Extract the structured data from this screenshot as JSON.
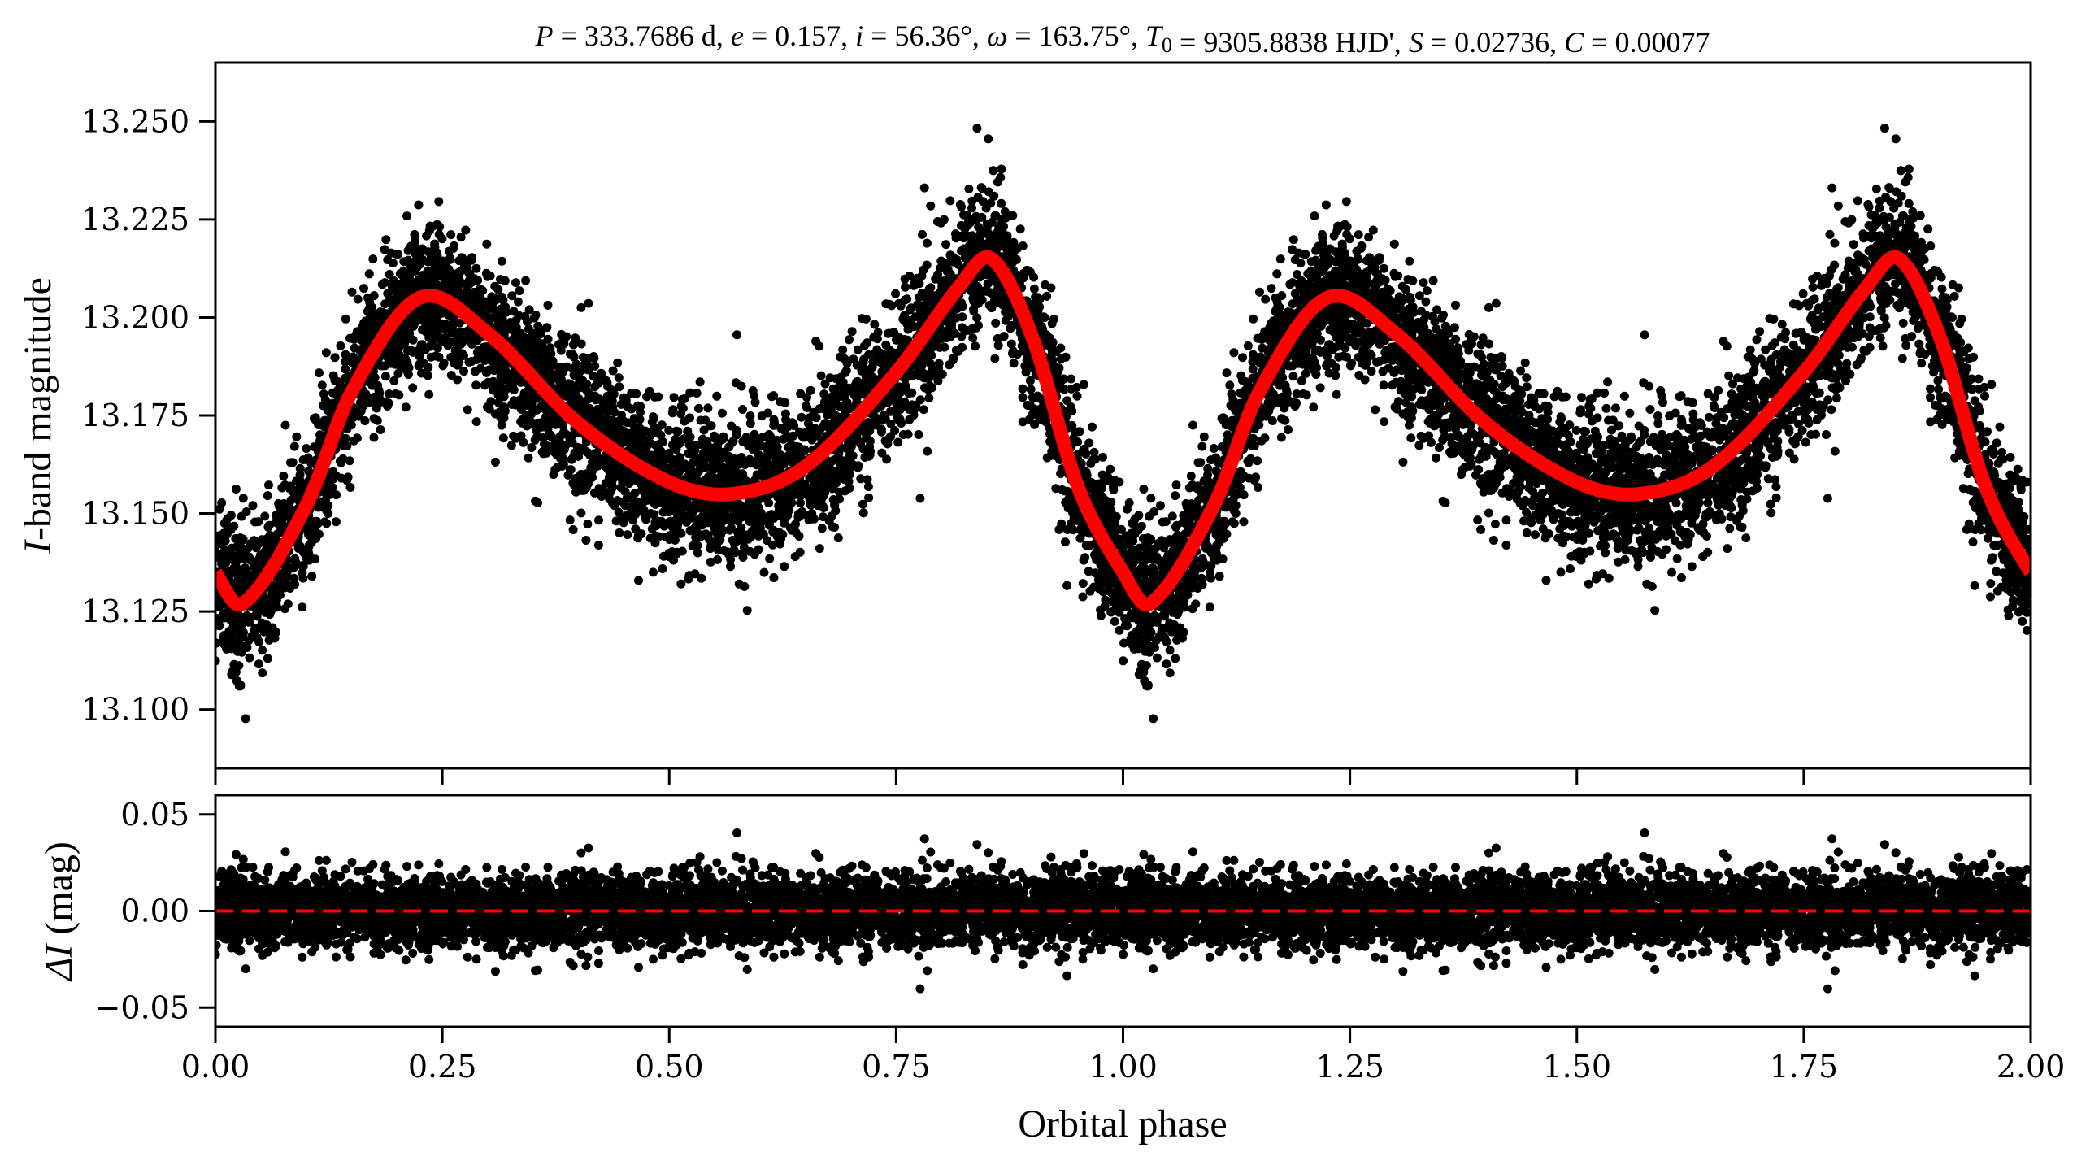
{
  "chart_data": {
    "type": "scatter",
    "title_parts": [
      {
        "t": "P",
        "i": true
      },
      {
        "t": " = 333.7686 d, "
      },
      {
        "t": "e",
        "i": true
      },
      {
        "t": " = 0.157, "
      },
      {
        "t": "i",
        "i": true
      },
      {
        "t": " = 56.36°, "
      },
      {
        "t": "ω",
        "i": true
      },
      {
        "t": " = 163.75°, "
      },
      {
        "t": "T",
        "i": true
      },
      {
        "t": "0",
        "sub": true
      },
      {
        "t": " = 9305.8838 HJD', "
      },
      {
        "t": "S",
        "i": true
      },
      {
        "t": " = 0.02736, "
      },
      {
        "t": "C",
        "i": true
      },
      {
        "t": " = 0.00077"
      }
    ],
    "xlabel": "Orbital phase",
    "xlim": [
      0,
      2
    ],
    "xticks": [
      "0.00",
      "0.25",
      "0.50",
      "0.75",
      "1.00",
      "1.25",
      "1.50",
      "1.75",
      "2.00"
    ],
    "xtick_values": [
      0,
      0.25,
      0.5,
      0.75,
      1.0,
      1.25,
      1.5,
      1.75,
      2.0
    ],
    "panels": [
      {
        "name": "light-curve",
        "ylabel_italic": "I",
        "ylabel_rest": "-band magnitude",
        "ylim": [
          13.265,
          13.085
        ],
        "yticks": [
          "13.100",
          "13.125",
          "13.150",
          "13.175",
          "13.200",
          "13.225",
          "13.250"
        ],
        "ytick_values": [
          13.1,
          13.125,
          13.15,
          13.175,
          13.2,
          13.225,
          13.25
        ],
        "model_color": "#ff0000",
        "model_phase": [
          0.0,
          0.03,
          0.1,
          0.15,
          0.225,
          0.3,
          0.4,
          0.5,
          0.57,
          0.65,
          0.75,
          0.82,
          0.855,
          0.9,
          0.95,
          1.0
        ],
        "model_mag": [
          13.135,
          13.127,
          13.152,
          13.181,
          13.205,
          13.196,
          13.173,
          13.158,
          13.155,
          13.162,
          13.186,
          13.208,
          13.215,
          13.195,
          13.157,
          13.135
        ]
      },
      {
        "name": "residuals",
        "ylabel_italic": "ΔI",
        "ylabel_rest": " (mag)",
        "ylim": [
          0.06,
          -0.06
        ],
        "yticks": [
          "−0.05",
          "0.00",
          "0.05"
        ],
        "ytick_values": [
          -0.05,
          0.0,
          0.05
        ],
        "zero_line_color": "#ff0000"
      }
    ],
    "observations": {
      "count": 5000,
      "residual_sigma_mag": 0.009,
      "point_color": "#000000",
      "phase_folded_twice": true
    }
  }
}
